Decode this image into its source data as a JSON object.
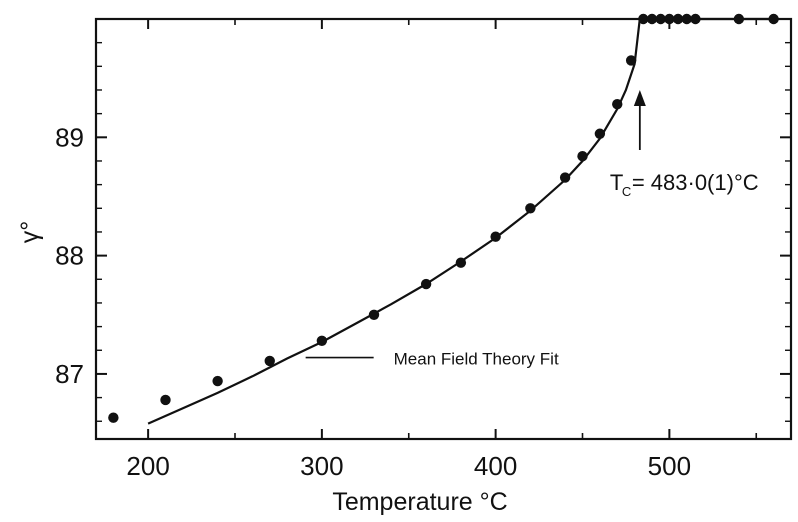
{
  "chart_data": {
    "type": "scatter",
    "title": "",
    "xlabel": "Temperature °C",
    "ylabel": "γ°",
    "xlim": [
      170,
      570
    ],
    "ylim": [
      86.45,
      90.0
    ],
    "grid": false,
    "legend": "none",
    "x_ticks": [
      {
        "value": 200,
        "label": "200"
      },
      {
        "value": 300,
        "label": "300"
      },
      {
        "value": 400,
        "label": "400"
      },
      {
        "value": 500,
        "label": "500"
      }
    ],
    "y_ticks": [
      {
        "value": 87,
        "label": "87"
      },
      {
        "value": 88,
        "label": "88"
      },
      {
        "value": 89,
        "label": "89"
      }
    ],
    "series": [
      {
        "kind": "points",
        "x": [
          180,
          210,
          240,
          270,
          300,
          330,
          360,
          380,
          400,
          420,
          440,
          450,
          460,
          470,
          478,
          485,
          490,
          495,
          500,
          505,
          510,
          515,
          540,
          560
        ],
        "y": [
          86.63,
          86.78,
          86.94,
          87.11,
          87.28,
          87.5,
          87.76,
          87.94,
          88.16,
          88.4,
          88.66,
          88.84,
          89.03,
          89.28,
          89.65,
          90.0,
          90.0,
          90.0,
          90.0,
          90.0,
          90.0,
          90.0,
          90.0,
          90.0
        ]
      },
      {
        "kind": "line",
        "x": [
          200,
          220,
          240,
          260,
          280,
          300,
          320,
          340,
          360,
          380,
          400,
          420,
          440,
          450,
          460,
          470,
          475,
          480,
          483,
          490,
          500,
          520,
          540,
          560
        ],
        "y": [
          86.58,
          86.71,
          86.84,
          86.98,
          87.13,
          87.27,
          87.43,
          87.59,
          87.76,
          87.95,
          88.15,
          88.38,
          88.64,
          88.8,
          88.99,
          89.24,
          89.4,
          89.62,
          90.0,
          90.0,
          90.0,
          90.0,
          90.0,
          90.0
        ]
      }
    ],
    "annotations": {
      "fit_label": "Mean Field Theory Fit",
      "fit_label_point": {
        "x": 278,
        "y": 87.13
      },
      "tc_label_prefix": "T",
      "tc_label_sub": "C",
      "tc_label_value": "= 483·0(1)°C",
      "tc_arrow_point": {
        "x": 483,
        "y": 89.4
      }
    }
  }
}
